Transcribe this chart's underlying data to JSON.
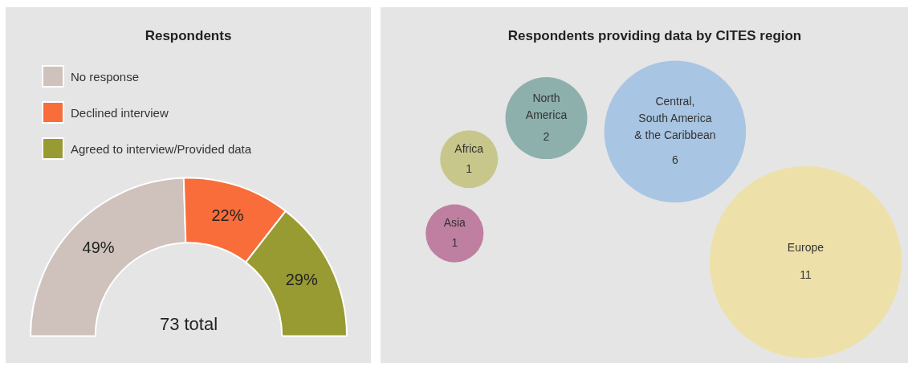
{
  "chart_data": [
    {
      "type": "donut",
      "title": "Respondents",
      "categories": [
        "No response",
        "Declined interview",
        "Agreed to interview/Provided data"
      ],
      "values": [
        49,
        22,
        29
      ],
      "colors": [
        "#cfc1bc",
        "#f96d3a",
        "#989a32"
      ],
      "value_labels": [
        "49%",
        "22%",
        "29%"
      ],
      "legend": "top",
      "annotations": [
        "73 total"
      ]
    },
    {
      "type": "other",
      "title": "Respondents providing data by CITES region",
      "categories": [
        "Asia",
        "Africa",
        "North\nAmerica",
        "Central,\nSouth America\n& the Caribbean",
        "Europe"
      ],
      "values": [
        1,
        1,
        2,
        6,
        11
      ],
      "colors": [
        "#bf7fa0",
        "#c8c78b",
        "#8db0ad",
        "#a8c5e3",
        "#ede1a9"
      ],
      "data_labels": true
    }
  ]
}
